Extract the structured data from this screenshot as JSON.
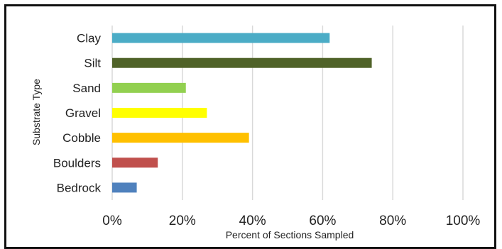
{
  "chart_data": {
    "type": "bar",
    "orientation": "horizontal",
    "categories": [
      "Clay",
      "Silt",
      "Sand",
      "Gravel",
      "Cobble",
      "Boulders",
      "Bedrock"
    ],
    "values": [
      62,
      74,
      21,
      27,
      39,
      13,
      7
    ],
    "colors": [
      "#4BACC6",
      "#4F6228",
      "#92D050",
      "#FFFF00",
      "#FFC000",
      "#C0504D",
      "#4F81BD"
    ],
    "xlabel": "Percent of Sections Sampled",
    "ylabel": "Substrate Type",
    "xlim": [
      0,
      100
    ],
    "x_ticks": [
      "0%",
      "20%",
      "40%",
      "60%",
      "80%",
      "100%"
    ],
    "grid": "vertical",
    "legend": "none"
  }
}
